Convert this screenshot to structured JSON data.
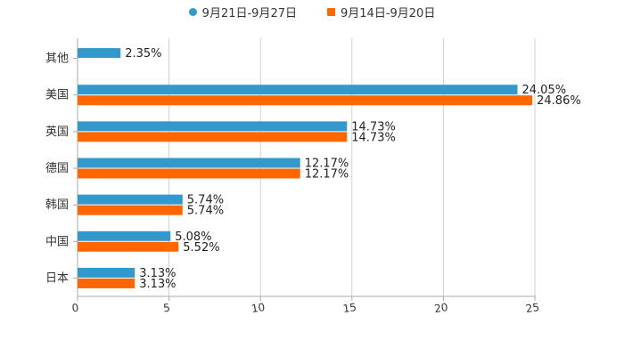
{
  "chart_data": {
    "type": "bar",
    "orientation": "horizontal",
    "categories": [
      "其他",
      "美国",
      "英国",
      "德国",
      "韩国",
      "中国",
      "日本"
    ],
    "series": [
      {
        "name": "9月21日-9月27日",
        "color": "#3399cc",
        "values": [
          2.35,
          24.05,
          14.73,
          12.17,
          5.74,
          5.08,
          3.13
        ],
        "labels": [
          "2.35%",
          "24.05%",
          "14.73%",
          "12.17%",
          "5.74%",
          "5.08%",
          "3.13%"
        ]
      },
      {
        "name": "9月14日-9月20日",
        "color": "#ff6600",
        "values": [
          null,
          24.86,
          14.73,
          12.17,
          5.74,
          5.52,
          3.13
        ],
        "labels": [
          "",
          "24.86%",
          "14.73%",
          "12.17%",
          "5.74%",
          "5.52%",
          "3.13%"
        ]
      }
    ],
    "xlim": [
      0,
      25
    ],
    "xticks": [
      "0",
      "5",
      "10",
      "15",
      "20",
      "25"
    ],
    "grid": true,
    "legend_position": "top-center"
  }
}
